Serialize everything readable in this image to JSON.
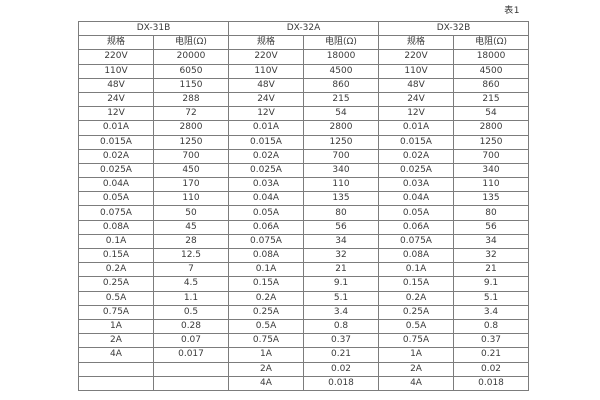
{
  "page": {
    "table_label": "表1"
  },
  "table": {
    "groups": [
      {
        "name": "DX-31B",
        "columns": [
          "规格",
          "电阻(Ω)"
        ],
        "rows": [
          [
            "220V",
            "20000"
          ],
          [
            "110V",
            "6050"
          ],
          [
            "48V",
            "1150"
          ],
          [
            "24V",
            "288"
          ],
          [
            "12V",
            "72"
          ],
          [
            "0.01A",
            "2800"
          ],
          [
            "0.015A",
            "1250"
          ],
          [
            "0.02A",
            "700"
          ],
          [
            "0.025A",
            "450"
          ],
          [
            "0.04A",
            "170"
          ],
          [
            "0.05A",
            "110"
          ],
          [
            "0.075A",
            "50"
          ],
          [
            "0.08A",
            "45"
          ],
          [
            "0.1A",
            "28"
          ],
          [
            "0.15A",
            "12.5"
          ],
          [
            "0.2A",
            "7"
          ],
          [
            "0.25A",
            "4.5"
          ],
          [
            "0.5A",
            "1.1"
          ],
          [
            "0.75A",
            "0.5"
          ],
          [
            "1A",
            "0.28"
          ],
          [
            "2A",
            "0.07"
          ],
          [
            "4A",
            "0.017"
          ],
          [
            "",
            ""
          ],
          [
            "",
            ""
          ]
        ]
      },
      {
        "name": "DX-32A",
        "columns": [
          "规格",
          "电阻(Ω)"
        ],
        "rows": [
          [
            "220V",
            "18000"
          ],
          [
            "110V",
            "4500"
          ],
          [
            "48V",
            "860"
          ],
          [
            "24V",
            "215"
          ],
          [
            "12V",
            "54"
          ],
          [
            "0.01A",
            "2800"
          ],
          [
            "0.015A",
            "1250"
          ],
          [
            "0.02A",
            "700"
          ],
          [
            "0.025A",
            "340"
          ],
          [
            "0.03A",
            "110"
          ],
          [
            "0.04A",
            "135"
          ],
          [
            "0.05A",
            "80"
          ],
          [
            "0.06A",
            "56"
          ],
          [
            "0.075A",
            "34"
          ],
          [
            "0.08A",
            "32"
          ],
          [
            "0.1A",
            "21"
          ],
          [
            "0.15A",
            "9.1"
          ],
          [
            "0.2A",
            "5.1"
          ],
          [
            "0.25A",
            "3.4"
          ],
          [
            "0.5A",
            "0.8"
          ],
          [
            "0.75A",
            "0.37"
          ],
          [
            "1A",
            "0.21"
          ],
          [
            "2A",
            "0.02"
          ],
          [
            "4A",
            "0.018"
          ]
        ]
      },
      {
        "name": "DX-32B",
        "columns": [
          "规格",
          "电阻(Ω)"
        ],
        "rows": [
          [
            "220V",
            "18000"
          ],
          [
            "110V",
            "4500"
          ],
          [
            "48V",
            "860"
          ],
          [
            "24V",
            "215"
          ],
          [
            "12V",
            "54"
          ],
          [
            "0.01A",
            "2800"
          ],
          [
            "0.015A",
            "1250"
          ],
          [
            "0.02A",
            "700"
          ],
          [
            "0.025A",
            "340"
          ],
          [
            "0.03A",
            "110"
          ],
          [
            "0.04A",
            "135"
          ],
          [
            "0.05A",
            "80"
          ],
          [
            "0.06A",
            "56"
          ],
          [
            "0.075A",
            "34"
          ],
          [
            "0.08A",
            "32"
          ],
          [
            "0.1A",
            "21"
          ],
          [
            "0.15A",
            "9.1"
          ],
          [
            "0.2A",
            "5.1"
          ],
          [
            "0.25A",
            "3.4"
          ],
          [
            "0.5A",
            "0.8"
          ],
          [
            "0.75A",
            "0.37"
          ],
          [
            "1A",
            "0.21"
          ],
          [
            "2A",
            "0.02"
          ],
          [
            "4A",
            "0.018"
          ]
        ]
      }
    ],
    "colors": {
      "border": "#7c7c7c",
      "text": "#3a3a3a",
      "background": "#ffffff"
    }
  }
}
